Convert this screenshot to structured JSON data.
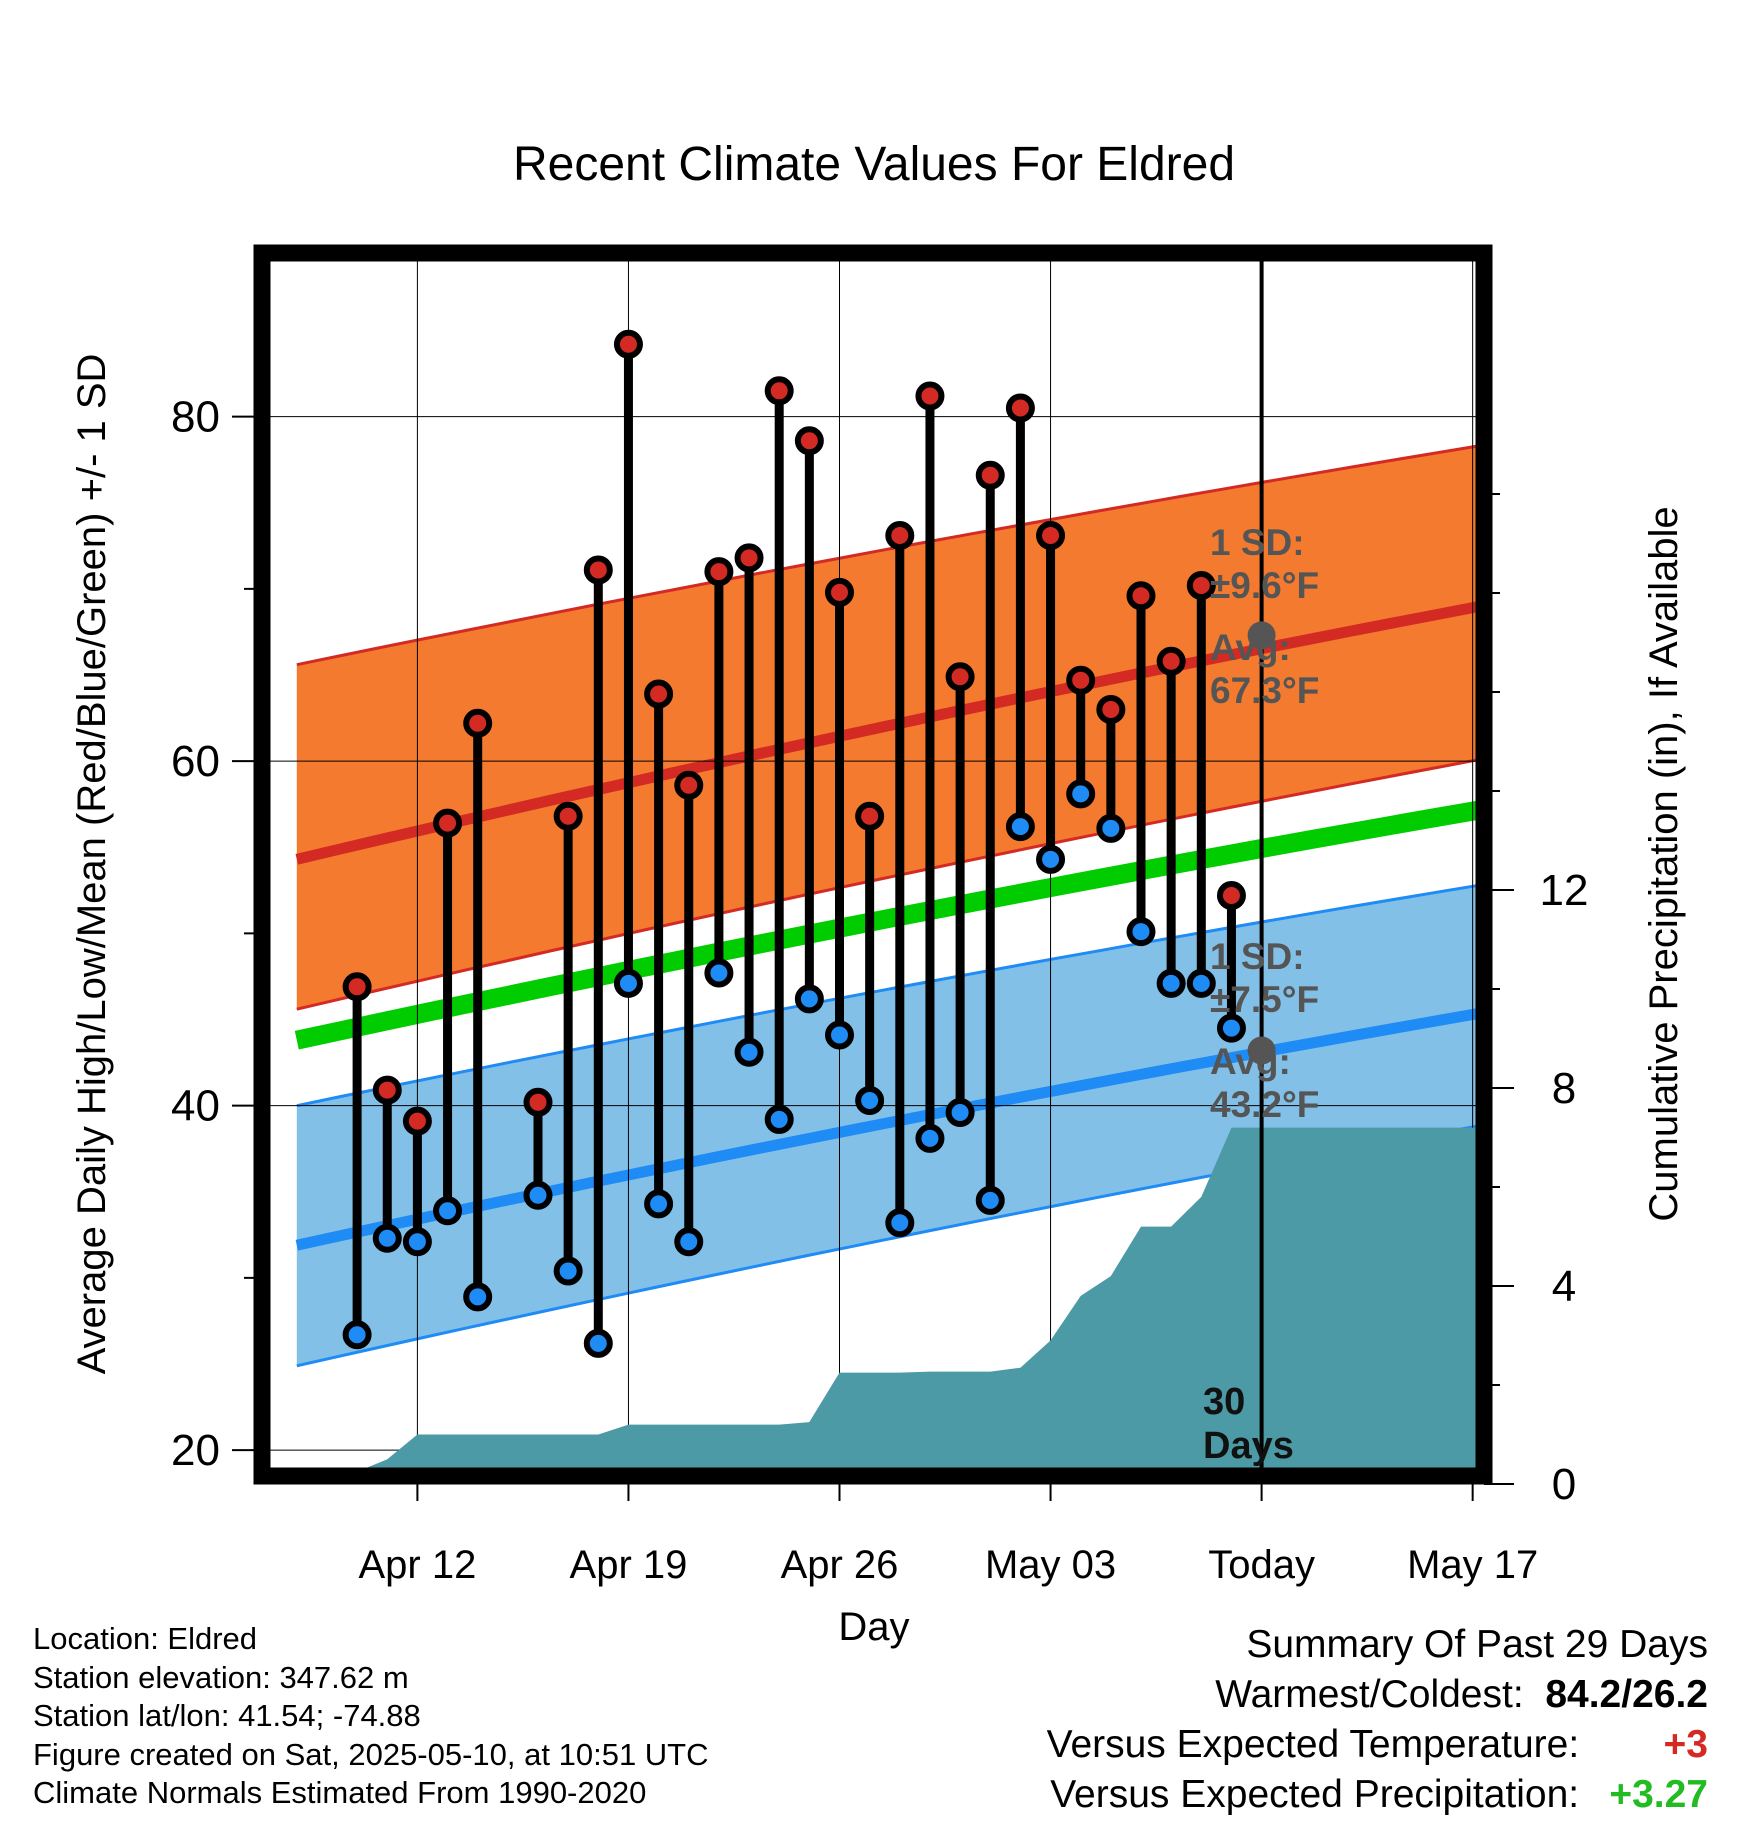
{
  "chart_data": {
    "type": "line",
    "title": "Recent Climate Values For Eldred",
    "xlabel": "Day",
    "ylabel": "Average Daily High/Low/Mean (Red/Blue/Green) +/- 1 SD",
    "y2label": "Cumulative Precipitation (in), If Available",
    "x_tick_labels": [
      "Apr 12",
      "Apr 19",
      "Apr 26",
      "May 03",
      "Today",
      "May 17"
    ],
    "y_ticks": [
      20,
      40,
      60,
      80
    ],
    "y2_ticks": [
      0,
      4,
      8,
      12
    ],
    "ylim": [
      18.5,
      89.5
    ],
    "y2lim": [
      0,
      21
    ],
    "grid": true,
    "colors": {
      "high": "#d42a24",
      "high_band": "#f47a2f",
      "low": "#1f8bf5",
      "low_band": "#82c0e8",
      "mean": "#00cc00",
      "precip": "#4b9aa5",
      "avg_text": "#555555"
    },
    "daily": [
      {
        "date": "Apr 10",
        "high": 46.9,
        "low": 26.7
      },
      {
        "date": "Apr 11",
        "high": 40.9,
        "low": 32.3
      },
      {
        "date": "Apr 12",
        "high": 39.1,
        "low": 32.1
      },
      {
        "date": "Apr 13",
        "high": 56.4,
        "low": 33.9
      },
      {
        "date": "Apr 14",
        "high": 62.2,
        "low": 28.9
      },
      {
        "date": "Apr 16",
        "high": 40.2,
        "low": 34.8
      },
      {
        "date": "Apr 17",
        "high": 56.8,
        "low": 30.4
      },
      {
        "date": "Apr 18",
        "high": 71.1,
        "low": 26.2
      },
      {
        "date": "Apr 19",
        "high": 84.2,
        "low": 47.1
      },
      {
        "date": "Apr 20",
        "high": 63.9,
        "low": 34.3
      },
      {
        "date": "Apr 21",
        "high": 58.6,
        "low": 32.1
      },
      {
        "date": "Apr 22",
        "high": 71.0,
        "low": 47.7
      },
      {
        "date": "Apr 23",
        "high": 71.8,
        "low": 43.1
      },
      {
        "date": "Apr 24",
        "high": 81.5,
        "low": 39.2
      },
      {
        "date": "Apr 25",
        "high": 78.6,
        "low": 46.2
      },
      {
        "date": "Apr 26",
        "high": 69.8,
        "low": 44.1
      },
      {
        "date": "Apr 27",
        "high": 56.8,
        "low": 40.3
      },
      {
        "date": "Apr 28",
        "high": 73.1,
        "low": 33.2
      },
      {
        "date": "Apr 29",
        "high": 81.2,
        "low": 38.1
      },
      {
        "date": "Apr 30",
        "high": 64.9,
        "low": 39.6
      },
      {
        "date": "May 01",
        "high": 76.6,
        "low": 34.5
      },
      {
        "date": "May 02",
        "high": 80.5,
        "low": 56.2
      },
      {
        "date": "May 03",
        "high": 73.1,
        "low": 54.3
      },
      {
        "date": "May 04",
        "high": 64.7,
        "low": 58.1
      },
      {
        "date": "May 05",
        "high": 63.0,
        "low": 56.1
      },
      {
        "date": "May 06",
        "high": 69.6,
        "low": 50.1
      },
      {
        "date": "May 07",
        "high": 65.8,
        "low": 47.1
      },
      {
        "date": "May 08",
        "high": 70.2,
        "low": 47.1
      },
      {
        "date": "May 09",
        "high": 52.2,
        "low": 44.5
      }
    ],
    "normals": {
      "dates": [
        "Apr 08",
        "May 20"
      ],
      "high_mean": [
        54.3,
        69.9
      ],
      "high_band_upper": [
        65.6,
        79.1
      ],
      "high_band_lower": [
        45.6,
        61.0
      ],
      "mean": [
        43.8,
        58.0
      ],
      "low_mean": [
        31.9,
        46.2
      ],
      "low_band_upper": [
        40.0,
        53.6
      ],
      "low_band_lower": [
        24.9,
        39.7
      ]
    },
    "precipitation_cumulative": {
      "dates": [
        "Apr 08",
        "Apr 09",
        "Apr 10",
        "Apr 11",
        "Apr 12",
        "Apr 13",
        "Apr 14",
        "Apr 15",
        "Apr 16",
        "Apr 17",
        "Apr 18",
        "Apr 19",
        "Apr 20",
        "Apr 21",
        "Apr 22",
        "Apr 23",
        "Apr 24",
        "Apr 25",
        "Apr 26",
        "Apr 27",
        "Apr 28",
        "Apr 29",
        "Apr 30",
        "May 01",
        "May 02",
        "May 03",
        "May 04",
        "May 05",
        "May 06",
        "May 07",
        "May 08",
        "May 09",
        "May 10",
        "May 20"
      ],
      "values": [
        0,
        0,
        0.25,
        0.5,
        1.0,
        1.0,
        1.0,
        1.0,
        1.0,
        1.0,
        1.0,
        1.2,
        1.2,
        1.2,
        1.2,
        1.2,
        1.2,
        1.25,
        2.25,
        2.25,
        2.25,
        2.27,
        2.27,
        2.27,
        2.35,
        2.9,
        3.8,
        4.2,
        5.2,
        5.2,
        5.8,
        7.2,
        7.2,
        7.2
      ]
    },
    "today_markers": {
      "high_sd_label": "1 SD:",
      "high_sd_value": "±9.6°F",
      "high_avg_label": "Avg:",
      "high_avg_value": "67.3°F",
      "high_avg": 67.3,
      "low_sd_label": "1 SD:",
      "low_sd_value": "±7.5°F",
      "low_avg_label": "Avg:",
      "low_avg_value": "43.2°F",
      "low_avg": 43.2
    },
    "days_label_line1": "30",
    "days_label_line2": "Days"
  },
  "info": {
    "location": "Location: Eldred",
    "elevation": "Station elevation: 347.62 m",
    "latlon": "Station lat/lon: 41.54; -74.88",
    "created": "Figure created on Sat, 2025-05-10, at 10:51 UTC",
    "normals": "Climate Normals Estimated From 1990-2020"
  },
  "summary": {
    "heading": "Summary Of Past 29 Days",
    "warm_cold_label": "Warmest/Coldest:",
    "warm_cold_value": "84.2/26.2",
    "temp_label": "Versus Expected Temperature:",
    "temp_value": "+3",
    "temp_color": "#d42a24",
    "precip_label": "Versus Expected Precipitation:",
    "precip_value": "+3.27",
    "precip_color": "#22bb22"
  }
}
